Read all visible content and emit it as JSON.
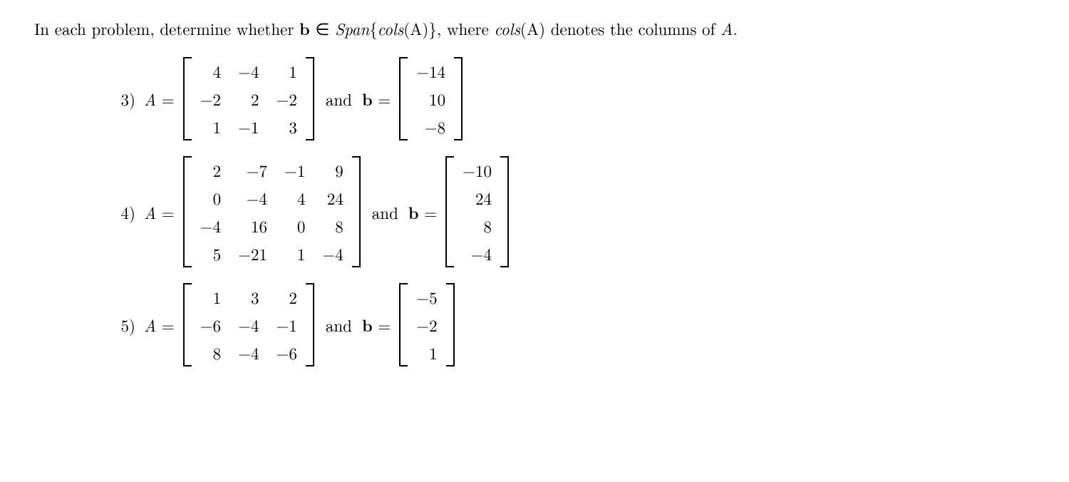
{
  "intro": {
    "pre": "In each problem, determine whether ",
    "b": "b",
    "mid1": " ∈ ",
    "span": "Span",
    "cols_open": "{",
    "cols_word": "cols",
    "cols_arg": "(A)",
    "cols_close": "}",
    "mid2": ", where ",
    "cols2": "cols",
    "cols2_arg": "(A)",
    "mid3": " denotes the columns of ",
    "A": "A",
    "period": "."
  },
  "labels": {
    "Aeq": "A =",
    "A": "A",
    "eq": "=",
    "and": "and",
    "b": "b",
    "beq": "b ="
  },
  "problems": [
    {
      "num": "3)",
      "A": [
        [
          "4",
          "−4",
          "1"
        ],
        [
          "−2",
          "2",
          "−2"
        ],
        [
          "1",
          "−1",
          "3"
        ]
      ],
      "b": [
        [
          "−14"
        ],
        [
          "10"
        ],
        [
          "−8"
        ]
      ]
    },
    {
      "num": "4)",
      "A": [
        [
          "2",
          "−7",
          "−1",
          "9"
        ],
        [
          "0",
          "−4",
          "4",
          "24"
        ],
        [
          "−4",
          "16",
          "0",
          "8"
        ],
        [
          "5",
          "−21",
          "1",
          "−4"
        ]
      ],
      "b": [
        [
          "−10"
        ],
        [
          "24"
        ],
        [
          "8"
        ],
        [
          "−4"
        ]
      ]
    },
    {
      "num": "5)",
      "A": [
        [
          "1",
          "3",
          "2"
        ],
        [
          "−6",
          "−4",
          "−1"
        ],
        [
          "8",
          "−4",
          "−6"
        ]
      ],
      "b": [
        [
          "−5"
        ],
        [
          "−2"
        ],
        [
          "1"
        ]
      ]
    }
  ]
}
